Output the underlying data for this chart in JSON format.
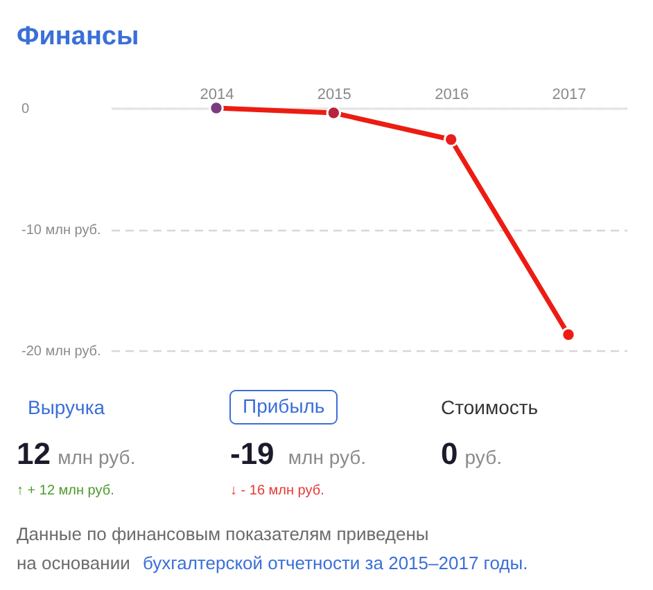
{
  "chart_data": {
    "type": "line",
    "title": "Финансы",
    "categories": [
      "2014",
      "2015",
      "2016",
      "2017"
    ],
    "series": [
      {
        "color": "#ec1c12",
        "colors": [
          "#7b3b7f",
          "#b3263c",
          "#e81e1a",
          "#ef1c14"
        ],
        "values": [
          0,
          -0.4,
          -2.6,
          -18.7
        ]
      }
    ],
    "ylim": [
      -20,
      0
    ],
    "yticks": [
      0,
      {
        "value": -10,
        "label": "-10 млн руб."
      },
      {
        "value": -20,
        "label": "-20 млн руб."
      }
    ],
    "grid": "y",
    "marker": "circle",
    "line_style": "solid",
    "annotations": [
      "Выручка",
      "Прибыль",
      "Стоимость",
      "12",
      "млн руб.",
      "-19",
      "млн руб.",
      "0",
      "руб.",
      "↑ + 12 млн руб.",
      "↓ - 16 млн руб.",
      "Данные по финансовым показателям приведены на основании",
      "бухгалтерской отчетности за 2015–2017 годы."
    ]
  }
}
